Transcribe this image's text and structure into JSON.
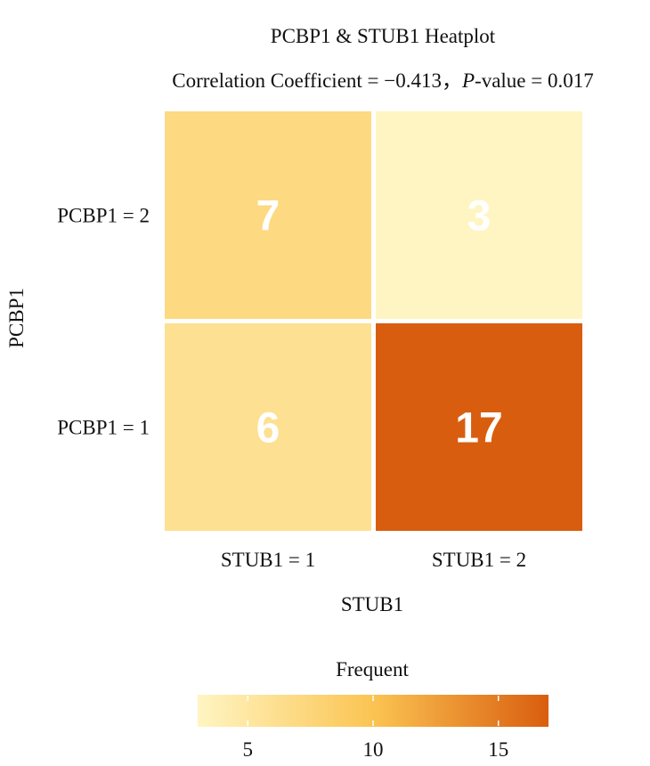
{
  "chart_data": {
    "type": "heatmap",
    "title": "PCBP1 & STUB1 Heatplot",
    "subtitle": {
      "prefix": "Correlation Coefficient = −0.413，",
      "p_label": "P",
      "suffix": "-value = 0.017"
    },
    "xlabel": "STUB1",
    "ylabel": "PCBP1",
    "x_categories": [
      "STUB1 = 1",
      "STUB1 = 2"
    ],
    "y_categories": [
      "PCBP1 = 2",
      "PCBP1 = 1"
    ],
    "values": [
      [
        7,
        3
      ],
      [
        6,
        17
      ]
    ],
    "legend": {
      "title": "Frequent",
      "min": 3,
      "max": 17,
      "ticks": [
        5,
        10,
        15
      ],
      "colors": [
        "#fff5c2",
        "#fbc452",
        "#d95d0e"
      ]
    }
  }
}
